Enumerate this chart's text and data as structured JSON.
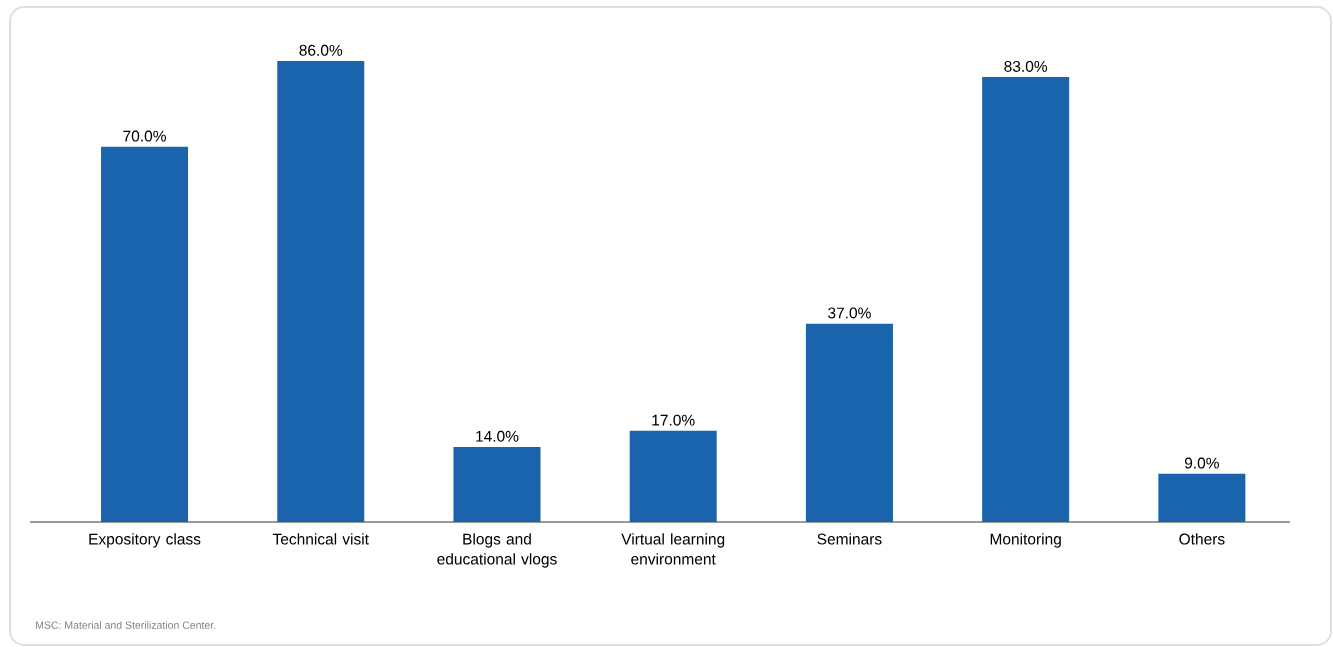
{
  "chart_data": {
    "type": "bar",
    "categories": [
      "Expository class",
      "Technical visit",
      "Blogs and educational vlogs",
      "Virtual learning environment",
      "Seminars",
      "Monitoring",
      "Others"
    ],
    "values": [
      70.0,
      86.0,
      14.0,
      17.0,
      37.0,
      83.0,
      9.0
    ],
    "value_labels": [
      "70.0%",
      "86.0%",
      "14.0%",
      "17.0%",
      "37.0%",
      "83.0%",
      "9.0%"
    ],
    "color": "#1a63ad",
    "annotations": [
      "MSC: Material and Sterilization Center."
    ]
  }
}
